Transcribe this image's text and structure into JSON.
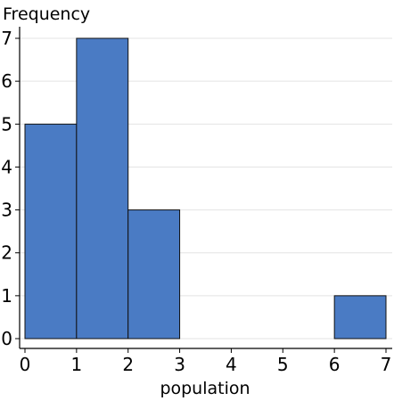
{
  "chart_data": {
    "type": "bar",
    "title": "",
    "xlabel": "population",
    "ylabel": "Frequency",
    "bins": [
      {
        "start": 0,
        "end": 1,
        "count": 5
      },
      {
        "start": 1,
        "end": 2,
        "count": 7
      },
      {
        "start": 2,
        "end": 3,
        "count": 3
      },
      {
        "start": 3,
        "end": 4,
        "count": 0
      },
      {
        "start": 4,
        "end": 5,
        "count": 0
      },
      {
        "start": 5,
        "end": 6,
        "count": 0
      },
      {
        "start": 6,
        "end": 7,
        "count": 1
      }
    ],
    "xlim": [
      0,
      7
    ],
    "ylim": [
      0,
      7
    ],
    "x_ticks": [
      "0",
      "1",
      "2",
      "3",
      "4",
      "5",
      "6",
      "7"
    ],
    "y_ticks": [
      "0",
      "1",
      "2",
      "3",
      "4",
      "5",
      "6",
      "7"
    ],
    "grid": "horizontal",
    "colors": {
      "bar": "#4a7bc4",
      "bar_edge": "#111111",
      "grid": "#e3e3e3",
      "axis": "#000000"
    }
  }
}
